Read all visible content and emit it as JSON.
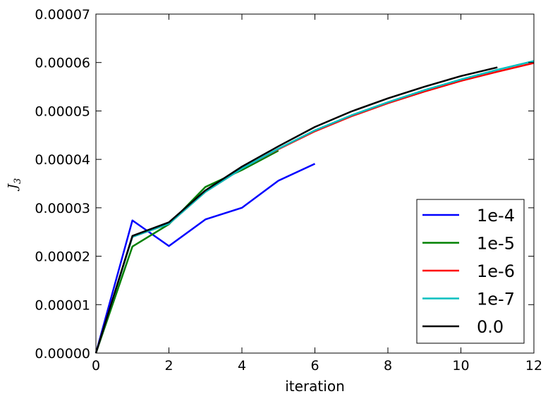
{
  "chart_data": {
    "type": "line",
    "title": "",
    "xlabel": "iteration",
    "ylabel": "J_3",
    "ylabel_display": {
      "base": "J",
      "subscript": "3"
    },
    "xlim": [
      0,
      12
    ],
    "ylim": [
      0,
      7e-05
    ],
    "x_ticks": [
      0,
      2,
      4,
      6,
      8,
      10,
      12
    ],
    "x_tick_labels": [
      "0",
      "2",
      "4",
      "6",
      "8",
      "10",
      "12"
    ],
    "y_ticks": [
      0,
      1e-05,
      2e-05,
      3e-05,
      4e-05,
      5e-05,
      6e-05,
      7e-05
    ],
    "y_tick_labels": [
      "0.00000",
      "0.00001",
      "0.00002",
      "0.00003",
      "0.00004",
      "0.00005",
      "0.00006",
      "0.00007"
    ],
    "grid": false,
    "legend_position": "bottom-right",
    "series": [
      {
        "name": "1e-4",
        "color": "#0000ff",
        "x": [
          0,
          1,
          2,
          3,
          4,
          5,
          6
        ],
        "y": [
          0,
          2.74e-05,
          2.21e-05,
          2.76e-05,
          3e-05,
          3.56e-05,
          3.91e-05
        ]
      },
      {
        "name": "1e-5",
        "color": "#008000",
        "x": [
          0,
          1,
          2,
          3,
          4,
          5
        ],
        "y": [
          0,
          2.2e-05,
          2.66e-05,
          3.43e-05,
          3.78e-05,
          4.18e-05
        ]
      },
      {
        "name": "1e-6",
        "color": "#ff0000",
        "x": [
          0,
          1,
          2,
          3,
          4,
          5,
          6,
          7,
          8,
          9,
          10,
          11,
          12
        ],
        "y": [
          0,
          2.4e-05,
          2.67e-05,
          3.33e-05,
          3.81e-05,
          4.21e-05,
          4.58e-05,
          4.89e-05,
          5.16e-05,
          5.4e-05,
          5.62e-05,
          5.81e-05,
          5.99e-05
        ]
      },
      {
        "name": "1e-7",
        "color": "#00bfbf",
        "x": [
          0,
          1,
          2,
          3,
          4,
          5,
          6,
          7,
          8,
          9,
          10,
          11,
          12
        ],
        "y": [
          0,
          2.4e-05,
          2.67e-05,
          3.33e-05,
          3.81e-05,
          4.22e-05,
          4.6e-05,
          4.91e-05,
          5.18e-05,
          5.43e-05,
          5.65e-05,
          5.85e-05,
          6.03e-05
        ]
      },
      {
        "name": "0.0",
        "color": "#000000",
        "x": [
          0,
          1,
          2,
          3,
          4,
          5,
          6,
          7,
          8,
          9,
          10,
          11
        ],
        "y": [
          0,
          2.42e-05,
          2.7e-05,
          3.36e-05,
          3.85e-05,
          4.27e-05,
          4.67e-05,
          4.99e-05,
          5.26e-05,
          5.5e-05,
          5.72e-05,
          5.9e-05
        ]
      }
    ]
  }
}
